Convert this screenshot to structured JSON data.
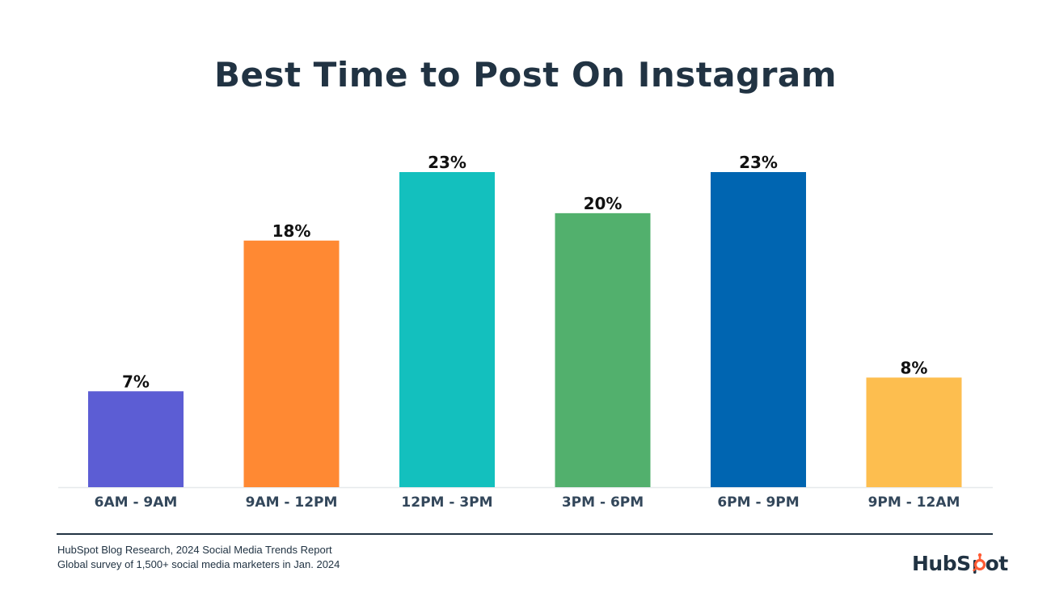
{
  "title": "Best Time to Post On Instagram",
  "chart_data": {
    "type": "bar",
    "title": "Best Time to Post On Instagram",
    "categories": [
      "6AM - 9AM",
      "9AM - 12PM",
      "12PM - 3PM",
      "3PM - 6PM",
      "6PM - 9PM",
      "9PM - 12AM"
    ],
    "values": [
      7,
      18,
      23,
      20,
      23,
      8
    ],
    "value_labels": [
      "7%",
      "18%",
      "23%",
      "20%",
      "23%",
      "8%"
    ],
    "colors": [
      "#5C5DD4",
      "#FF8933",
      "#13C0BE",
      "#52B06D",
      "#0065B1",
      "#FDBE4F"
    ],
    "xlabel": "",
    "ylabel": "",
    "ylim": [
      0,
      23
    ],
    "grid": false,
    "legend": "none"
  },
  "footer": {
    "source_line1": "HubSpot Blog Research, 2024 Social Media Trends Report",
    "source_line2": "Global survey of 1,500+ social media marketers in Jan. 2024",
    "logo_text_left": "HubS",
    "logo_text_right": "ot",
    "logo_accent_color": "#FF5C35"
  }
}
